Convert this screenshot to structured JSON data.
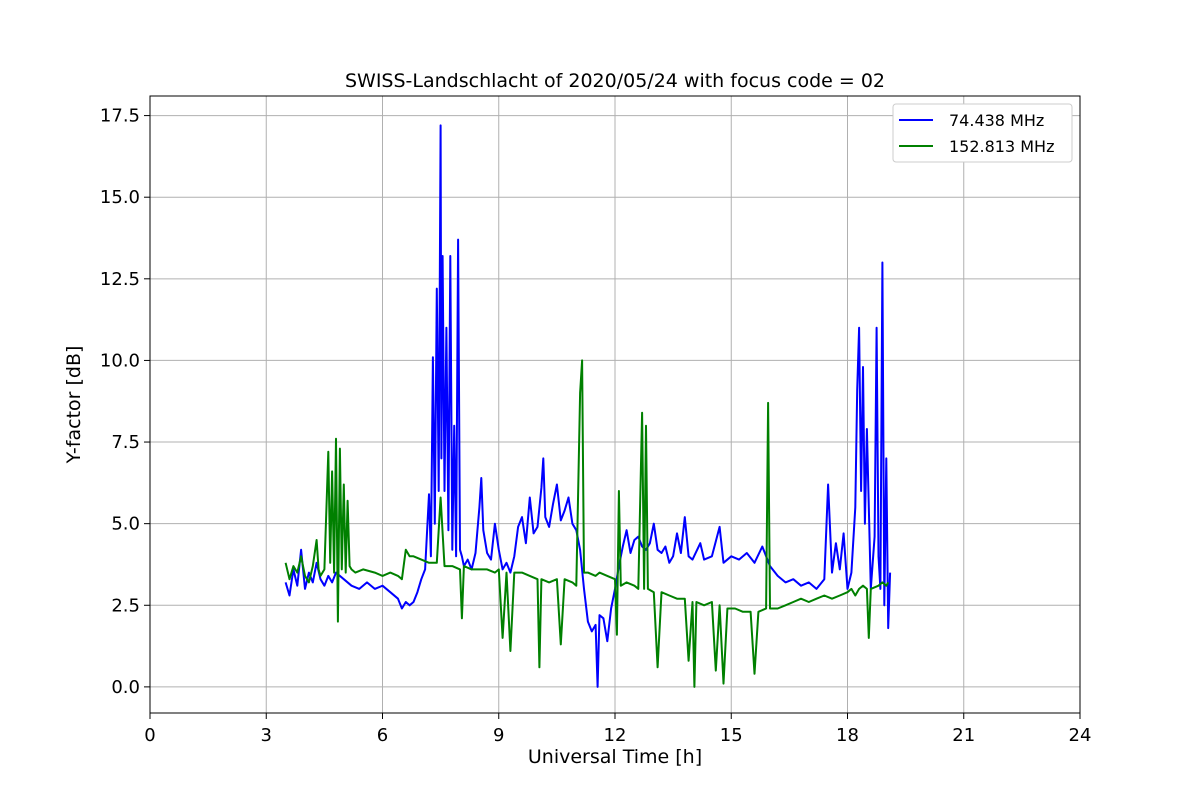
{
  "chart_data": {
    "type": "line",
    "title": "SWISS-Landschlacht of 2020/05/24 with focus code = 02",
    "xlabel": "Universal Time [h]",
    "ylabel": "Y-factor [dB]",
    "xlim": [
      0,
      24
    ],
    "ylim": [
      -0.8,
      18.1
    ],
    "xticks": [
      0,
      3,
      6,
      9,
      12,
      15,
      18,
      21,
      24
    ],
    "xtick_labels": [
      "0",
      "3",
      "6",
      "9",
      "12",
      "15",
      "18",
      "21",
      "24"
    ],
    "yticks": [
      0.0,
      2.5,
      5.0,
      7.5,
      10.0,
      12.5,
      15.0,
      17.5
    ],
    "ytick_labels": [
      "0.0",
      "2.5",
      "5.0",
      "7.5",
      "10.0",
      "12.5",
      "15.0",
      "17.5"
    ],
    "grid": true,
    "legend_position": "top-right",
    "series": [
      {
        "name": "74.438 MHz",
        "color": "#0000ff",
        "points": [
          [
            3.5,
            3.2
          ],
          [
            3.6,
            2.8
          ],
          [
            3.7,
            3.6
          ],
          [
            3.8,
            3.1
          ],
          [
            3.9,
            4.2
          ],
          [
            4.0,
            3.0
          ],
          [
            4.1,
            3.5
          ],
          [
            4.2,
            3.2
          ],
          [
            4.3,
            3.8
          ],
          [
            4.4,
            3.3
          ],
          [
            4.5,
            3.1
          ],
          [
            4.6,
            3.4
          ],
          [
            4.7,
            3.2
          ],
          [
            4.8,
            3.5
          ],
          [
            5.0,
            3.3
          ],
          [
            5.2,
            3.1
          ],
          [
            5.4,
            3.0
          ],
          [
            5.6,
            3.2
          ],
          [
            5.8,
            3.0
          ],
          [
            6.0,
            3.1
          ],
          [
            6.2,
            2.9
          ],
          [
            6.4,
            2.7
          ],
          [
            6.5,
            2.4
          ],
          [
            6.6,
            2.6
          ],
          [
            6.7,
            2.5
          ],
          [
            6.8,
            2.6
          ],
          [
            6.9,
            2.9
          ],
          [
            7.0,
            3.3
          ],
          [
            7.1,
            3.6
          ],
          [
            7.2,
            5.9
          ],
          [
            7.25,
            4.0
          ],
          [
            7.3,
            10.1
          ],
          [
            7.35,
            5.0
          ],
          [
            7.4,
            12.2
          ],
          [
            7.45,
            6.0
          ],
          [
            7.5,
            17.2
          ],
          [
            7.52,
            7.0
          ],
          [
            7.55,
            13.2
          ],
          [
            7.6,
            6.0
          ],
          [
            7.65,
            11.0
          ],
          [
            7.7,
            4.8
          ],
          [
            7.75,
            13.2
          ],
          [
            7.8,
            4.2
          ],
          [
            7.85,
            8.0
          ],
          [
            7.9,
            4.0
          ],
          [
            7.95,
            13.7
          ],
          [
            8.0,
            4.2
          ],
          [
            8.05,
            4.0
          ],
          [
            8.1,
            3.7
          ],
          [
            8.2,
            3.9
          ],
          [
            8.3,
            3.6
          ],
          [
            8.4,
            4.1
          ],
          [
            8.5,
            5.5
          ],
          [
            8.55,
            6.4
          ],
          [
            8.6,
            4.8
          ],
          [
            8.7,
            4.1
          ],
          [
            8.8,
            3.9
          ],
          [
            8.9,
            5.0
          ],
          [
            9.0,
            4.2
          ],
          [
            9.1,
            3.6
          ],
          [
            9.2,
            3.8
          ],
          [
            9.3,
            3.5
          ],
          [
            9.4,
            4.0
          ],
          [
            9.5,
            4.9
          ],
          [
            9.6,
            5.2
          ],
          [
            9.7,
            4.4
          ],
          [
            9.8,
            5.8
          ],
          [
            9.9,
            4.7
          ],
          [
            10.0,
            4.9
          ],
          [
            10.1,
            6.1
          ],
          [
            10.15,
            7.0
          ],
          [
            10.2,
            5.2
          ],
          [
            10.3,
            4.9
          ],
          [
            10.4,
            5.6
          ],
          [
            10.5,
            6.2
          ],
          [
            10.6,
            5.1
          ],
          [
            10.7,
            5.4
          ],
          [
            10.8,
            5.8
          ],
          [
            10.9,
            5.0
          ],
          [
            11.0,
            4.8
          ],
          [
            11.1,
            4.2
          ],
          [
            11.2,
            3.0
          ],
          [
            11.3,
            2.0
          ],
          [
            11.4,
            1.7
          ],
          [
            11.5,
            1.9
          ],
          [
            11.55,
            0.0
          ],
          [
            11.6,
            2.2
          ],
          [
            11.7,
            2.1
          ],
          [
            11.8,
            1.4
          ],
          [
            11.9,
            2.4
          ],
          [
            12.0,
            3.0
          ],
          [
            12.1,
            3.7
          ],
          [
            12.2,
            4.3
          ],
          [
            12.3,
            4.8
          ],
          [
            12.4,
            4.1
          ],
          [
            12.5,
            4.5
          ],
          [
            12.6,
            4.6
          ],
          [
            12.7,
            4.3
          ],
          [
            12.8,
            4.2
          ],
          [
            12.9,
            4.4
          ],
          [
            13.0,
            5.0
          ],
          [
            13.1,
            4.2
          ],
          [
            13.2,
            4.1
          ],
          [
            13.3,
            4.3
          ],
          [
            13.4,
            3.8
          ],
          [
            13.5,
            4.0
          ],
          [
            13.6,
            4.7
          ],
          [
            13.7,
            4.1
          ],
          [
            13.8,
            5.2
          ],
          [
            13.9,
            4.0
          ],
          [
            14.0,
            3.9
          ],
          [
            14.2,
            4.4
          ],
          [
            14.3,
            3.9
          ],
          [
            14.5,
            4.0
          ],
          [
            14.7,
            4.9
          ],
          [
            14.8,
            3.8
          ],
          [
            15.0,
            4.0
          ],
          [
            15.2,
            3.9
          ],
          [
            15.4,
            4.1
          ],
          [
            15.6,
            3.8
          ],
          [
            15.8,
            4.3
          ],
          [
            16.0,
            3.7
          ],
          [
            16.2,
            3.4
          ],
          [
            16.4,
            3.2
          ],
          [
            16.6,
            3.3
          ],
          [
            16.8,
            3.1
          ],
          [
            17.0,
            3.2
          ],
          [
            17.2,
            3.0
          ],
          [
            17.4,
            3.3
          ],
          [
            17.5,
            6.2
          ],
          [
            17.6,
            3.5
          ],
          [
            17.7,
            4.4
          ],
          [
            17.8,
            3.6
          ],
          [
            17.9,
            4.7
          ],
          [
            18.0,
            3.0
          ],
          [
            18.1,
            3.5
          ],
          [
            18.2,
            5.5
          ],
          [
            18.25,
            9.1
          ],
          [
            18.3,
            11.0
          ],
          [
            18.35,
            6.0
          ],
          [
            18.4,
            9.8
          ],
          [
            18.45,
            5.0
          ],
          [
            18.5,
            7.9
          ],
          [
            18.6,
            3.0
          ],
          [
            18.7,
            4.6
          ],
          [
            18.75,
            11.0
          ],
          [
            18.8,
            4.0
          ],
          [
            18.85,
            3.0
          ],
          [
            18.9,
            13.0
          ],
          [
            18.95,
            2.5
          ],
          [
            19.0,
            7.0
          ],
          [
            19.05,
            1.8
          ],
          [
            19.1,
            3.5
          ]
        ]
      },
      {
        "name": "152.813 MHz",
        "color": "#008000",
        "points": [
          [
            3.5,
            3.8
          ],
          [
            3.6,
            3.3
          ],
          [
            3.7,
            3.7
          ],
          [
            3.8,
            3.5
          ],
          [
            3.9,
            4.0
          ],
          [
            4.0,
            3.4
          ],
          [
            4.1,
            3.2
          ],
          [
            4.2,
            3.7
          ],
          [
            4.3,
            4.5
          ],
          [
            4.35,
            3.6
          ],
          [
            4.4,
            3.4
          ],
          [
            4.5,
            3.6
          ],
          [
            4.6,
            7.2
          ],
          [
            4.65,
            3.8
          ],
          [
            4.7,
            6.6
          ],
          [
            4.75,
            3.5
          ],
          [
            4.8,
            7.6
          ],
          [
            4.85,
            2.0
          ],
          [
            4.9,
            7.3
          ],
          [
            4.95,
            3.6
          ],
          [
            5.0,
            6.2
          ],
          [
            5.05,
            3.5
          ],
          [
            5.1,
            5.7
          ],
          [
            5.15,
            3.7
          ],
          [
            5.2,
            3.6
          ],
          [
            5.3,
            3.5
          ],
          [
            5.5,
            3.6
          ],
          [
            5.8,
            3.5
          ],
          [
            6.0,
            3.4
          ],
          [
            6.2,
            3.5
          ],
          [
            6.4,
            3.4
          ],
          [
            6.5,
            3.3
          ],
          [
            6.6,
            4.2
          ],
          [
            6.7,
            4.0
          ],
          [
            6.8,
            4.0
          ],
          [
            7.0,
            3.9
          ],
          [
            7.2,
            3.8
          ],
          [
            7.4,
            3.8
          ],
          [
            7.5,
            5.8
          ],
          [
            7.6,
            3.7
          ],
          [
            7.8,
            3.7
          ],
          [
            8.0,
            3.6
          ],
          [
            8.05,
            2.1
          ],
          [
            8.1,
            3.7
          ],
          [
            8.3,
            3.6
          ],
          [
            8.5,
            3.6
          ],
          [
            8.7,
            3.6
          ],
          [
            8.9,
            3.5
          ],
          [
            9.0,
            3.6
          ],
          [
            9.1,
            1.5
          ],
          [
            9.2,
            3.5
          ],
          [
            9.3,
            1.1
          ],
          [
            9.4,
            3.5
          ],
          [
            9.6,
            3.5
          ],
          [
            9.8,
            3.4
          ],
          [
            10.0,
            3.3
          ],
          [
            10.05,
            0.6
          ],
          [
            10.1,
            3.3
          ],
          [
            10.3,
            3.2
          ],
          [
            10.5,
            3.3
          ],
          [
            10.6,
            1.3
          ],
          [
            10.7,
            3.3
          ],
          [
            10.9,
            3.2
          ],
          [
            11.0,
            3.1
          ],
          [
            11.1,
            9.0
          ],
          [
            11.15,
            10.0
          ],
          [
            11.2,
            3.5
          ],
          [
            11.3,
            3.5
          ],
          [
            11.5,
            3.4
          ],
          [
            11.6,
            3.5
          ],
          [
            11.8,
            3.4
          ],
          [
            12.0,
            3.3
          ],
          [
            12.05,
            1.6
          ],
          [
            12.1,
            6.0
          ],
          [
            12.15,
            3.1
          ],
          [
            12.3,
            3.2
          ],
          [
            12.5,
            3.1
          ],
          [
            12.6,
            3.0
          ],
          [
            12.7,
            8.4
          ],
          [
            12.75,
            3.0
          ],
          [
            12.8,
            8.0
          ],
          [
            12.85,
            3.0
          ],
          [
            13.0,
            2.9
          ],
          [
            13.1,
            0.6
          ],
          [
            13.2,
            2.9
          ],
          [
            13.4,
            2.8
          ],
          [
            13.6,
            2.7
          ],
          [
            13.8,
            2.7
          ],
          [
            13.9,
            0.8
          ],
          [
            14.0,
            2.6
          ],
          [
            14.05,
            0.0
          ],
          [
            14.1,
            2.6
          ],
          [
            14.3,
            2.5
          ],
          [
            14.5,
            2.6
          ],
          [
            14.6,
            0.5
          ],
          [
            14.7,
            2.5
          ],
          [
            14.8,
            0.1
          ],
          [
            14.9,
            2.4
          ],
          [
            15.1,
            2.4
          ],
          [
            15.3,
            2.3
          ],
          [
            15.5,
            2.3
          ],
          [
            15.6,
            0.4
          ],
          [
            15.7,
            2.3
          ],
          [
            15.9,
            2.4
          ],
          [
            15.95,
            8.7
          ],
          [
            16.0,
            2.4
          ],
          [
            16.2,
            2.4
          ],
          [
            16.4,
            2.5
          ],
          [
            16.6,
            2.6
          ],
          [
            16.8,
            2.7
          ],
          [
            17.0,
            2.6
          ],
          [
            17.2,
            2.7
          ],
          [
            17.4,
            2.8
          ],
          [
            17.6,
            2.7
          ],
          [
            17.8,
            2.8
          ],
          [
            18.0,
            2.9
          ],
          [
            18.1,
            3.0
          ],
          [
            18.2,
            2.8
          ],
          [
            18.3,
            3.0
          ],
          [
            18.4,
            3.1
          ],
          [
            18.5,
            3.0
          ],
          [
            18.55,
            1.5
          ],
          [
            18.6,
            3.0
          ],
          [
            18.8,
            3.1
          ],
          [
            18.9,
            3.2
          ],
          [
            19.0,
            3.1
          ],
          [
            19.05,
            3.2
          ]
        ]
      }
    ]
  }
}
